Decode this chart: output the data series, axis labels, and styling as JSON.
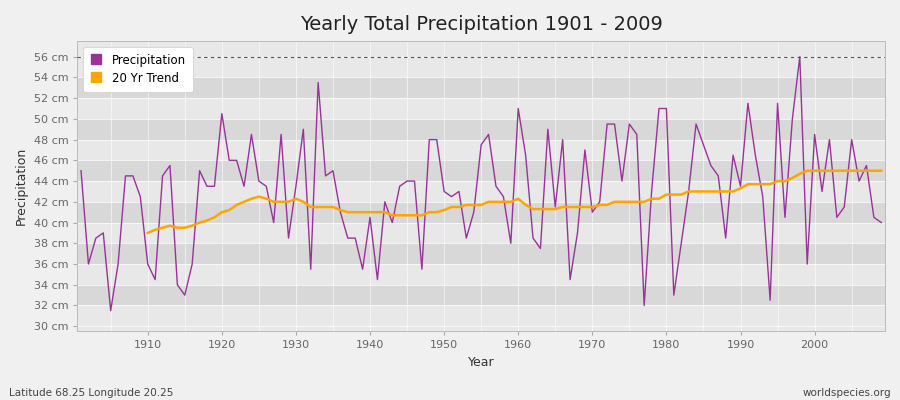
{
  "title": "Yearly Total Precipitation 1901 - 2009",
  "xlabel": "Year",
  "ylabel": "Precipitation",
  "background_color": "#f0f0f0",
  "plot_bg_color": "#e8e8e8",
  "plot_bg_alt": "#d8d8d8",
  "precip_color": "#993399",
  "trend_color": "#ffa500",
  "ylim": [
    29.5,
    57.5
  ],
  "yticks": [
    30,
    32,
    34,
    36,
    38,
    40,
    42,
    44,
    46,
    48,
    50,
    52,
    54,
    56
  ],
  "years": [
    1901,
    1902,
    1903,
    1904,
    1905,
    1906,
    1907,
    1908,
    1909,
    1910,
    1911,
    1912,
    1913,
    1914,
    1915,
    1916,
    1917,
    1918,
    1919,
    1920,
    1921,
    1922,
    1923,
    1924,
    1925,
    1926,
    1927,
    1928,
    1929,
    1930,
    1931,
    1932,
    1933,
    1934,
    1935,
    1936,
    1937,
    1938,
    1939,
    1940,
    1941,
    1942,
    1943,
    1944,
    1945,
    1946,
    1947,
    1948,
    1949,
    1950,
    1951,
    1952,
    1953,
    1954,
    1955,
    1956,
    1957,
    1958,
    1959,
    1960,
    1961,
    1962,
    1963,
    1964,
    1965,
    1966,
    1967,
    1968,
    1969,
    1970,
    1971,
    1972,
    1973,
    1974,
    1975,
    1976,
    1977,
    1978,
    1979,
    1980,
    1981,
    1982,
    1983,
    1984,
    1985,
    1986,
    1987,
    1988,
    1989,
    1990,
    1991,
    1992,
    1993,
    1994,
    1995,
    1996,
    1997,
    1998,
    1999,
    2000,
    2001,
    2002,
    2003,
    2004,
    2005,
    2006,
    2007,
    2008,
    2009
  ],
  "precip": [
    45.0,
    36.0,
    38.5,
    39.0,
    31.5,
    36.0,
    44.5,
    44.5,
    42.5,
    36.0,
    34.5,
    44.5,
    45.5,
    34.0,
    33.0,
    36.0,
    45.0,
    43.5,
    43.5,
    50.5,
    46.0,
    46.0,
    43.5,
    48.5,
    44.0,
    43.5,
    40.0,
    48.5,
    38.5,
    43.5,
    49.0,
    35.5,
    53.5,
    44.5,
    45.0,
    41.0,
    38.5,
    38.5,
    35.5,
    40.5,
    34.5,
    42.0,
    40.0,
    43.5,
    44.0,
    44.0,
    35.5,
    48.0,
    48.0,
    43.0,
    42.5,
    43.0,
    38.5,
    41.0,
    47.5,
    48.5,
    43.5,
    42.5,
    38.0,
    51.0,
    46.5,
    38.5,
    37.5,
    49.0,
    41.5,
    48.0,
    34.5,
    39.0,
    47.0,
    41.0,
    42.0,
    49.5,
    49.5,
    44.0,
    49.5,
    48.5,
    32.0,
    43.0,
    51.0,
    51.0,
    33.0,
    38.0,
    43.0,
    49.5,
    47.5,
    45.5,
    44.5,
    38.5,
    46.5,
    43.5,
    51.5,
    46.5,
    42.5,
    32.5,
    51.5,
    40.5,
    50.0,
    56.0,
    36.0,
    48.5,
    43.0,
    48.0,
    40.5,
    41.5,
    48.0,
    44.0,
    45.5,
    40.5,
    40.0
  ],
  "trend": [
    null,
    null,
    null,
    null,
    null,
    null,
    null,
    null,
    null,
    39.0,
    39.3,
    39.5,
    39.7,
    39.5,
    39.5,
    39.7,
    40.0,
    40.2,
    40.5,
    41.0,
    41.2,
    41.7,
    42.0,
    42.3,
    42.5,
    42.3,
    42.0,
    42.0,
    42.0,
    42.3,
    42.0,
    41.5,
    41.5,
    41.5,
    41.5,
    41.2,
    41.0,
    41.0,
    41.0,
    41.0,
    41.0,
    41.0,
    40.7,
    40.7,
    40.7,
    40.7,
    40.7,
    41.0,
    41.0,
    41.2,
    41.5,
    41.5,
    41.7,
    41.7,
    41.7,
    42.0,
    42.0,
    42.0,
    42.0,
    42.3,
    41.7,
    41.3,
    41.3,
    41.3,
    41.3,
    41.5,
    41.5,
    41.5,
    41.5,
    41.5,
    41.7,
    41.7,
    42.0,
    42.0,
    42.0,
    42.0,
    42.0,
    42.3,
    42.3,
    42.7,
    42.7,
    42.7,
    43.0,
    43.0,
    43.0,
    43.0,
    43.0,
    43.0,
    43.0,
    43.3,
    43.7,
    43.7,
    43.7,
    43.7,
    44.0,
    44.0,
    44.3,
    44.7,
    45.0,
    45.0,
    45.0,
    45.0,
    45.0,
    45.0,
    45.0,
    45.0,
    45.0,
    45.0,
    45.0
  ],
  "subtitle": "Latitude 68.25 Longitude 20.25",
  "credit": "worldspecies.org",
  "title_fontsize": 14,
  "tick_fontsize": 8,
  "label_fontsize": 9,
  "tick_color": "#666666",
  "label_color": "#333333"
}
